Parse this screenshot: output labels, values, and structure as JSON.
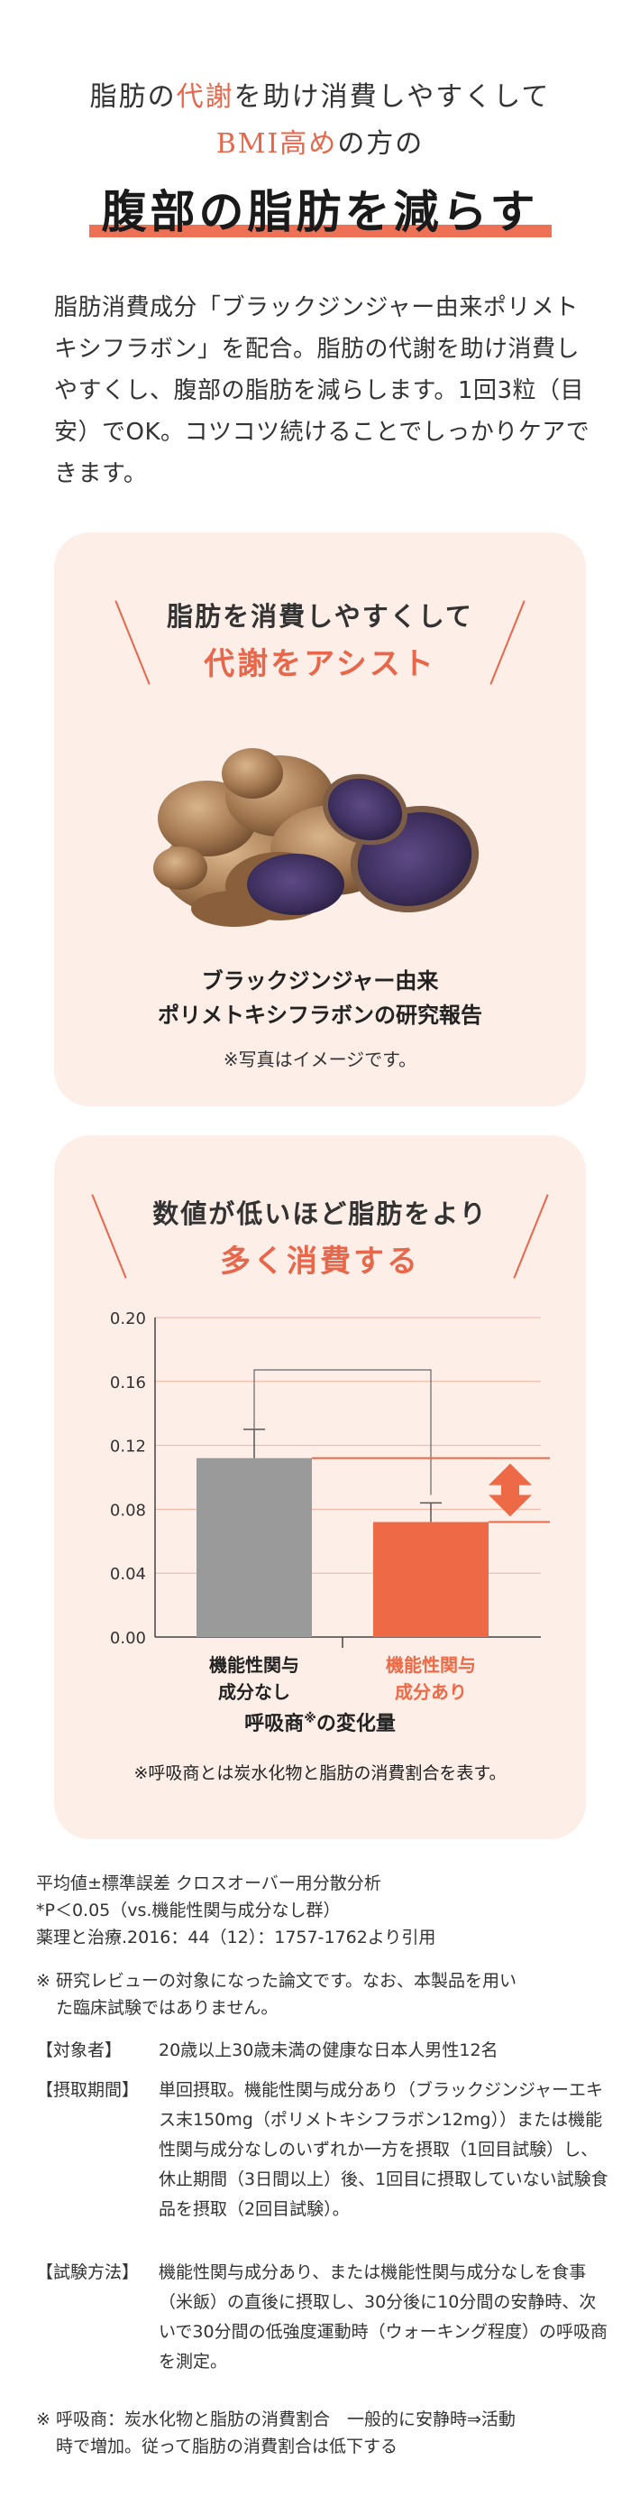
{
  "header": {
    "line1_a": "脂肪の",
    "line1_b": "代謝",
    "line1_c": "を助け消費しやすくして",
    "line2_a": "BMI高め",
    "line2_b": "の方の",
    "headline": "腹部の脂肪を減らす"
  },
  "intro": "脂肪消費成分「ブラックジンジャー由来ポリメトキシフラボン」を配合。脂肪の代謝を助け消費しやすくし、腹部の脂肪を減らします。1回3粒（目安）でOK。コツコツ続けることでしっかりケアできます。",
  "panel1": {
    "line1": "脂肪を消費しやすくして",
    "line2": "代謝をアシスト",
    "caption1": "ブラックジンジャー由来",
    "caption2": "ポリメトキシフラボンの研究報告",
    "note": "※写真はイメージです。"
  },
  "panel2": {
    "line1": "数値が低いほど脂肪をより",
    "line2": "多く消費する",
    "metric_a": "呼吸商",
    "metric_sup": "※",
    "metric_b": "の変化量",
    "note": "※呼吸商とは炭水化物と脂肪の消費割合を表す。"
  },
  "chart_data": {
    "type": "bar",
    "categories": [
      "機能性関与成分なし",
      "機能性関与成分あり"
    ],
    "category_lines": [
      [
        "機能性関与",
        "成分なし"
      ],
      [
        "機能性関与",
        "成分あり"
      ]
    ],
    "values": [
      0.112,
      0.072
    ],
    "errors": [
      0.018,
      0.012
    ],
    "bar_colors": [
      "#9a9a9a",
      "#ee6a46"
    ],
    "yticks": [
      "0.20",
      "0.16",
      "0.12",
      "0.08",
      "0.04",
      "0.00"
    ],
    "ylim": [
      0,
      0.2
    ],
    "grid": true
  },
  "footnotes": {
    "stats1": "平均値±標準誤差 クロスオーバー用分散分析",
    "stats2": "*P＜0.05（vs.機能性関与成分なし群）",
    "stats3": "薬理と治療.2016：44（12）：1757-1762より引用",
    "review_a": "※ 研究レビューの対象になった論文です。なお、本製品を用い",
    "review_b": "た臨床試験ではありません。",
    "subjects_k": "【対象者】",
    "subjects_v": "20歳以上30歳未満の健康な日本人男性12名",
    "period_k": "【摂取期間】",
    "period_v": "単回摂取。機能性関与成分あり（ブラックジンジャーエキス末150mg（ポリメトキシフラボン12mg））または機能性関与成分なしのいずれか一方を摂取（1回目試験）し、休止期間（3日間以上）後、1回目に摂取していない試験食品を摂取（2回目試験）。",
    "method_k": "【試験方法】",
    "method_v": "機能性関与成分あり、または機能性関与成分なしを食事（米飯）の直後に摂取し、30分後に10分間の安静時、次いで30分間の低強度運動時（ウォーキング程度）の呼吸商を測定。",
    "rq_a": "※ 呼吸商：炭水化物と脂肪の消費割合　一般的に安静時⇒活動",
    "rq_b": "時で増加。従って脂肪の消費割合は低下する"
  }
}
